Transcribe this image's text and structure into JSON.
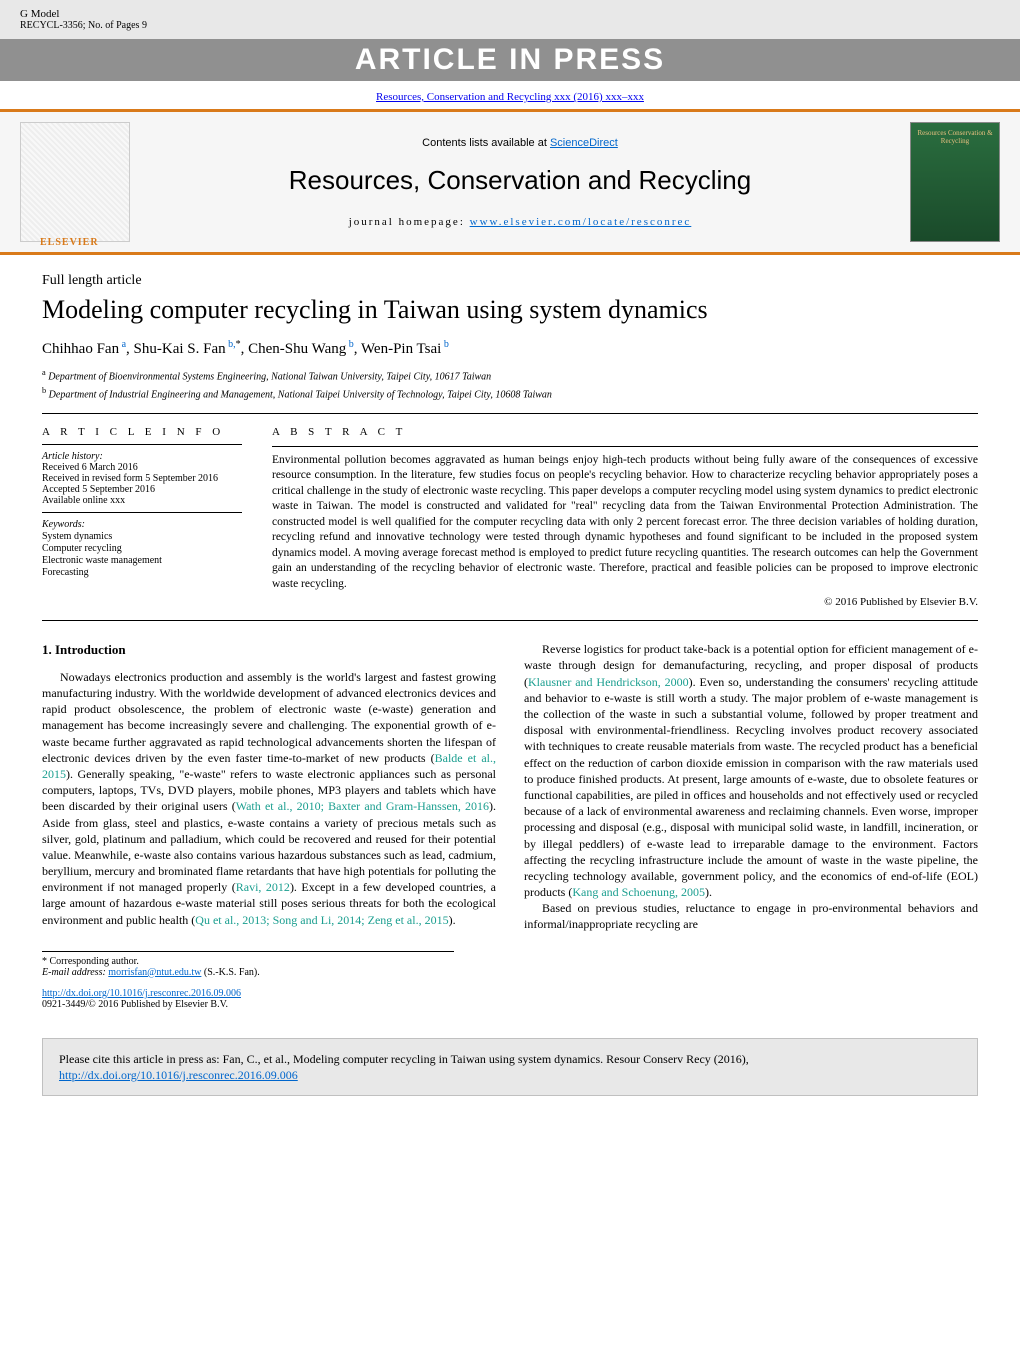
{
  "gmodel": {
    "label": "G Model",
    "code": "RECYCL-3356;   No. of Pages 9"
  },
  "articleInPress": "ARTICLE IN PRESS",
  "journalRefLine": "Resources, Conservation and Recycling xxx (2016) xxx–xxx",
  "banner": {
    "contentsPrefix": "Contents lists available at ",
    "contentsLink": "ScienceDirect",
    "journalTitle": "Resources, Conservation and Recycling",
    "homepagePrefix": "journal homepage: ",
    "homepageUrl": "www.elsevier.com/locate/resconrec",
    "elsevierLabel": "ELSEVIER",
    "coverCaption": "Resources Conservation & Recycling"
  },
  "article": {
    "type": "Full length article",
    "title": "Modeling computer recycling in Taiwan using system dynamics",
    "authorsHtml": "Chihhao Fan<sup> a</sup>, Shu-Kai S. Fan<sup> b,</sup><sup class=\"star\">*</sup>, Chen-Shu Wang<sup> b</sup>, Wen-Pin Tsai<sup> b</sup>",
    "affiliations": [
      {
        "sup": "a",
        "text": "Department of Bioenvironmental Systems Engineering, National Taiwan University, Taipei City, 10617 Taiwan"
      },
      {
        "sup": "b",
        "text": "Department of Industrial Engineering and Management, National Taipei University of Technology, Taipei City, 10608 Taiwan"
      }
    ]
  },
  "info": {
    "headArticleInfo": "A R T I C L E    I N F O",
    "historyLabel": "Article history:",
    "history": [
      "Received 6 March 2016",
      "Received in revised form 5 September 2016",
      "Accepted 5 September 2016",
      "Available online xxx"
    ],
    "keywordsLabel": "Keywords:",
    "keywords": [
      "System dynamics",
      "Computer recycling",
      "Electronic waste management",
      "Forecasting"
    ]
  },
  "abstract": {
    "head": "A B S T R A C T",
    "text": "Environmental pollution becomes aggravated as human beings enjoy high-tech products without being fully aware of the consequences of excessive resource consumption. In the literature, few studies focus on people's recycling behavior. How to characterize recycling behavior appropriately poses a critical challenge in the study of electronic waste recycling. This paper develops a computer recycling model using system dynamics to predict electronic waste in Taiwan. The model is constructed and validated for \"real\" recycling data from the Taiwan Environmental Protection Administration. The constructed model is well qualified for the computer recycling data with only 2 percent forecast error. The three decision variables of holding duration, recycling refund and innovative technology were tested through dynamic hypotheses and found significant to be included in the proposed system dynamics model. A moving average forecast method is employed to predict future recycling quantities. The research outcomes can help the Government gain an understanding of the recycling behavior of electronic waste. Therefore, practical and feasible policies can be proposed to improve electronic waste recycling.",
    "copyright": "© 2016 Published by Elsevier B.V."
  },
  "introduction": {
    "heading": "1. Introduction",
    "p1_a": "Nowadays electronics production and assembly is the world's largest and fastest growing manufacturing industry. With the worldwide development of advanced electronics devices and rapid product obsolescence, the problem of electronic waste (e-waste) generation and management has become increasingly severe and challenging. The exponential growth of e-waste became further aggravated as rapid technological advancements shorten the lifespan of electronic devices driven by the even faster time-to-market of new products (",
    "ref1": "Balde et al., 2015",
    "p1_b": "). Generally speaking, \"e-waste\" refers to waste electronic appliances such as personal computers, laptops, TVs, DVD players, mobile phones, MP3 players and tablets which have been discarded by their original users (",
    "ref2": "Wath et al., 2010; Baxter and Gram-Hanssen, 2016",
    "p1_c": "). Aside from glass, steel and plastics, e-waste contains a variety of precious metals such as silver, gold, platinum and palladium, which could be recovered and reused for their potential value. Meanwhile, e-waste also contains various hazardous substances such as lead, cadmium, beryllium, mercury and brominated flame retardants that have high potentials for polluting the environment if not managed properly (",
    "ref3": "Ravi, 2012",
    "p1_d": "). Except in a few developed countries, a large amount of hazardous e-waste material still poses serious threats for both the ecological environment and public health (",
    "ref4": "Qu et al., 2013; Song and Li, 2014; Zeng et al., 2015",
    "p1_e": ").",
    "p2_a": "Reverse logistics for product take-back is a potential option for efficient management of e-waste through design for demanufacturing, recycling, and proper disposal of products (",
    "ref5": "Klausner and Hendrickson, 2000",
    "p2_b": "). Even so, understanding the consumers' recycling attitude and behavior to e-waste is still worth a study. The major problem of e-waste management is the collection of the waste in such a substantial volume, followed by proper treatment and disposal with environmental-friendliness. Recycling involves product recovery associated with techniques to create reusable materials from waste. The recycled product has a beneficial effect on the reduction of carbon dioxide emission in comparison with the raw materials used to produce finished products. At present, large amounts of e-waste, due to obsolete features or functional capabilities, are piled in offices and households and not effectively used or recycled because of a lack of environmental awareness and reclaiming channels. Even worse, improper processing and disposal (e.g., disposal with municipal solid waste, in landfill, incineration, or by illegal peddlers) of e-waste lead to irreparable damage to the environment. Factors affecting the recycling infrastructure include the amount of waste in the waste pipeline, the recycling technology available, government policy, and the economics of end-of-life (EOL) products (",
    "ref6": "Kang and Schoenung, 2005",
    "p2_c": ").",
    "p3": "Based on previous studies, reluctance to engage in pro-environmental behaviors and informal/inappropriate recycling are"
  },
  "footnotes": {
    "corrLabel": "* Corresponding author.",
    "emailLabel": "E-mail address: ",
    "email": "morrisfan@ntut.edu.tw",
    "emailSuffix": " (S.-K.S. Fan)."
  },
  "doi": {
    "url": "http://dx.doi.org/10.1016/j.resconrec.2016.09.006",
    "issn": "0921-3449/© 2016 Published by Elsevier B.V."
  },
  "citebox": {
    "text_a": "Please cite this article in press as: Fan, C., et al., Modeling computer recycling in Taiwan using system dynamics. Resour Conserv Recy (2016), ",
    "link": "http://dx.doi.org/10.1016/j.resconrec.2016.09.006"
  },
  "colors": {
    "accentOrange": "#d97a1a",
    "linkBlue": "#0066cc",
    "refTeal": "#1a9e8f",
    "headerGray": "#e8e8e8",
    "pressGray": "#909090"
  }
}
